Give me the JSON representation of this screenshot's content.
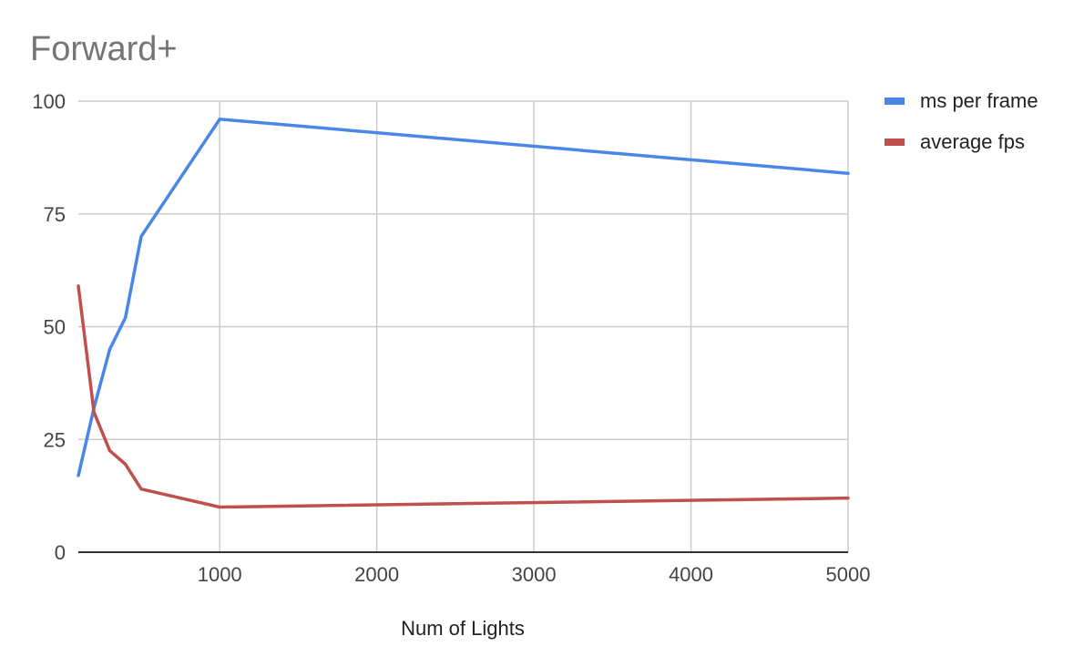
{
  "chart_data": {
    "type": "line",
    "title": "Forward+",
    "xlabel": "Num of Lights",
    "ylabel": "",
    "xlim": [
      100,
      5000
    ],
    "ylim": [
      0,
      100
    ],
    "x_ticks": [
      1000,
      2000,
      3000,
      4000,
      5000
    ],
    "y_ticks": [
      0,
      25,
      50,
      75,
      100
    ],
    "grid": true,
    "legend_position": "right",
    "series": [
      {
        "name": "ms per frame",
        "color": "#4a86e8",
        "x": [
          100,
          200,
          300,
          400,
          500,
          1000,
          5000
        ],
        "y": [
          17,
          32,
          45,
          52,
          70,
          96,
          84
        ]
      },
      {
        "name": "average fps",
        "color": "#c0504d",
        "x": [
          100,
          200,
          300,
          400,
          500,
          1000,
          5000
        ],
        "y": [
          59,
          31,
          22.5,
          19.5,
          14,
          10,
          12
        ]
      }
    ]
  }
}
